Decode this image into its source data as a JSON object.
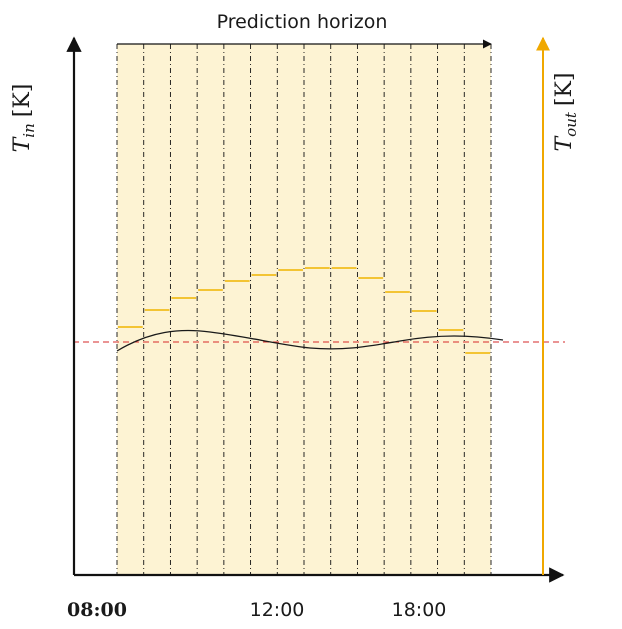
{
  "diagram": {
    "horizon_label": "Prediction horizon",
    "y_left_label_main": "T",
    "y_left_label_sub": "in",
    "y_left_label_unit": "[K]",
    "y_right_label_main": "T",
    "y_right_label_sub": "out",
    "y_right_label_unit": "[K]",
    "x_ticks": [
      {
        "label": "08:00",
        "bold": true
      },
      {
        "label": "12:00",
        "bold": false
      },
      {
        "label": "18:00",
        "bold": false
      }
    ],
    "num_intervals": 14,
    "colors": {
      "shading": "#fdf3d3",
      "setpoint_line": "#d62828",
      "tout_steps": "#f0b400",
      "tout_axis": "#f0a800",
      "tin_curve": "#1a1a1a",
      "axes": "#111111"
    }
  }
}
